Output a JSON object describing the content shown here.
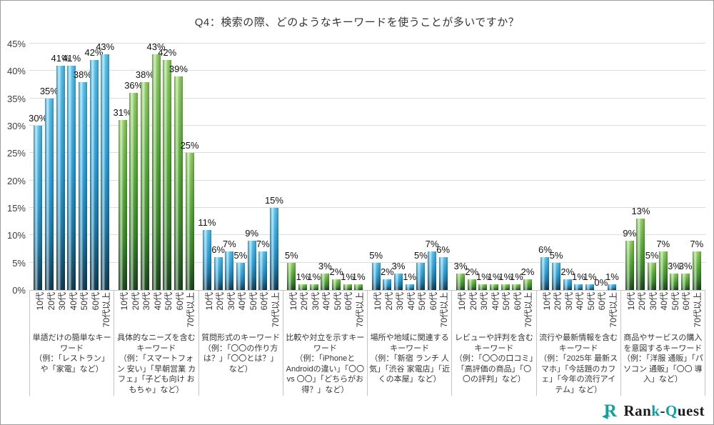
{
  "title": "Q4：検索の際、どのようなキーワードを使うことが多いですか？",
  "chart_data": {
    "type": "bar",
    "title": "Q4：検索の際、どのようなキーワードを使うことが多いですか？",
    "ylim": [
      0,
      45
    ],
    "y_ticks": [
      "0%",
      "5%",
      "10%",
      "15%",
      "20%",
      "25%",
      "30%",
      "35%",
      "40%",
      "45%"
    ],
    "grid": true,
    "legend": "none",
    "age_categories": [
      "10代",
      "20代",
      "30代",
      "40代",
      "50代",
      "60代",
      "70代以上"
    ],
    "groups": [
      {
        "name": "単語だけの簡単なキーワード",
        "example": "（例：「レストラン」や「家電」など）",
        "color": "blue",
        "values": [
          30,
          35,
          41,
          41,
          38,
          42,
          43
        ]
      },
      {
        "name": "具体的なニーズを含むキーワード",
        "example": "（例：「スマートフォン 安い」「早朝営業 カフェ」「子ども向け おもちゃ」など）",
        "color": "green",
        "values": [
          31,
          36,
          38,
          43,
          42,
          39,
          25
        ]
      },
      {
        "name": "質問形式のキーワード",
        "example": "（例：「〇〇の作り方は？」「〇〇とは？」など）",
        "color": "blue",
        "values": [
          11,
          6,
          7,
          5,
          9,
          7,
          15
        ]
      },
      {
        "name": "比較や対立を示すキーワード",
        "example": "（例：「iPhoneとAndroidの違い」「〇〇 vs 〇〇」「どちらがお得？」など）",
        "color": "green",
        "values": [
          5,
          1,
          1,
          3,
          2,
          1,
          1
        ]
      },
      {
        "name": "場所や地域に関連するキーワード",
        "example": "（例：「新宿 ランチ 人気」「渋谷 家電店」「近くの本屋」など）",
        "color": "blue",
        "values": [
          5,
          2,
          3,
          1,
          5,
          7,
          6
        ]
      },
      {
        "name": "レビューや評判を含むキーワード",
        "example": "（例：「〇〇の口コミ」「高評価の商品」「〇〇の評判」など）",
        "color": "green",
        "values": [
          3,
          2,
          1,
          1,
          1,
          1,
          2
        ]
      },
      {
        "name": "流行や最新情報を含むキーワード",
        "example": "（例：「2025年 最新スマホ」「今話題のカフェ」「今年の流行アイテム」など）",
        "color": "blue",
        "values": [
          6,
          5,
          2,
          1,
          1,
          0,
          1
        ]
      },
      {
        "name": "商品やサービスの購入を意図するキーワード",
        "example": "（例：「洋服 通販」「パソコン 通販」「〇〇 導入」など）",
        "color": "green",
        "values": [
          9,
          13,
          5,
          7,
          3,
          3,
          7
        ]
      }
    ]
  },
  "colors": {
    "bar_blue_top": "#5BC6EE",
    "bar_blue_mid": "#2FA3DB",
    "bar_blue_bottom": "#123F56",
    "bar_green_top": "#96D368",
    "bar_green_mid": "#58AC3A",
    "bar_green_bottom": "#1C4A1E",
    "gridline": "#DCDCDC",
    "logo_teal": "#0AA29A"
  },
  "logo": {
    "prefix": "Ran",
    "k": "k",
    "dash": "-",
    "q": "Q",
    "suffix": "uest"
  }
}
